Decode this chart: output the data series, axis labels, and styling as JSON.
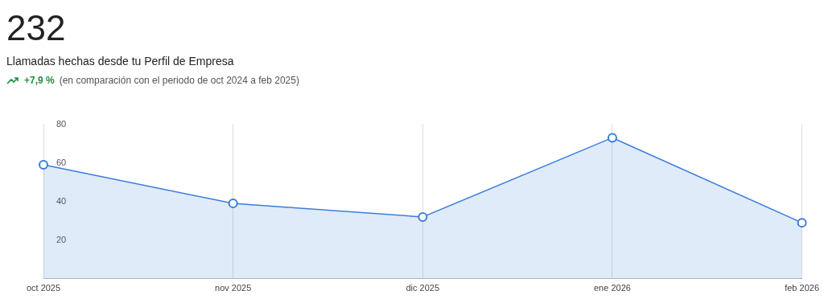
{
  "chart_data": {
    "type": "area",
    "title": "232",
    "subtitle": "Llamadas hechas desde tu Perfil de Empresa",
    "annotations": [
      "+7,9 %",
      "(en comparación con el periodo de oct 2024 a feb 2025)"
    ],
    "categories": [
      "oct 2025",
      "nov 2025",
      "dic 2025",
      "ene 2026",
      "feb 2026"
    ],
    "series": [
      {
        "color": "#3a7ddb",
        "values": [
          59,
          39,
          32,
          73,
          29
        ]
      }
    ],
    "ylim": [
      0,
      80
    ],
    "yticks": [
      20,
      40,
      60,
      80
    ],
    "grid": "x",
    "marker": "circle",
    "legend": false
  }
}
